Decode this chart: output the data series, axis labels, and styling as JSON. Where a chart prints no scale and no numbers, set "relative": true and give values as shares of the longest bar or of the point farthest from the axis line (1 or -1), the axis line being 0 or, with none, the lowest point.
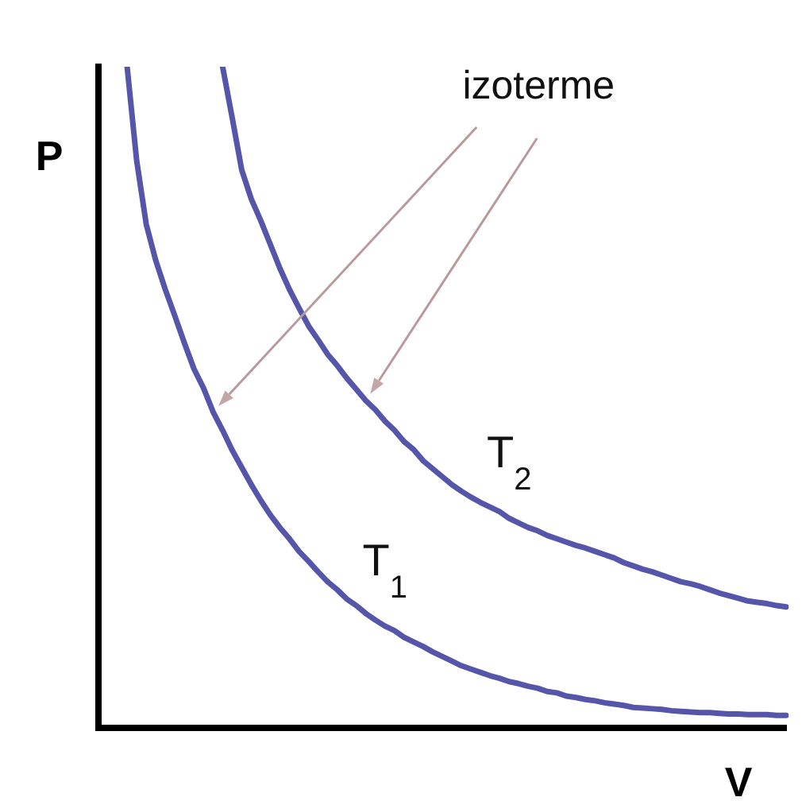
{
  "chart_data": {
    "type": "line",
    "relative": true,
    "xlabel": "V",
    "ylabel": "P",
    "annotations": [
      "izoterme"
    ],
    "categories": [
      null,
      null,
      null,
      null,
      null,
      null,
      null,
      null,
      null,
      null,
      null,
      null,
      null,
      null,
      null,
      null,
      null,
      null,
      null,
      null,
      null,
      null,
      null,
      null,
      null,
      null,
      null,
      null,
      null,
      null,
      null,
      null,
      null,
      null,
      null,
      null,
      null,
      null,
      null,
      null,
      null,
      null,
      null,
      null,
      null,
      null,
      null,
      null,
      null,
      null,
      null,
      null,
      null,
      null,
      null,
      null,
      null,
      null,
      null,
      null,
      null,
      null,
      null,
      null,
      null,
      null,
      null,
      null,
      null,
      null,
      null,
      null,
      null
    ],
    "series": [
      {
        "name": "T$_{1}$",
        "color": "#5555aa",
        "values": [
          null,
          null,
          null,
          1,
          0.858,
          0.762,
          0.707,
          0.663,
          0.623,
          0.582,
          0.543,
          0.514,
          0.478,
          0.45,
          0.42,
          0.394,
          0.368,
          0.344,
          0.322,
          0.303,
          0.286,
          0.267,
          0.252,
          0.236,
          0.221,
          0.209,
          0.195,
          0.185,
          0.173,
          0.163,
          0.154,
          0.147,
          0.137,
          0.13,
          0.123,
          0.115,
          0.108,
          0.101,
          0.094,
          0.089,
          0.084,
          0.079,
          0.075,
          0.07,
          0.067,
          0.063,
          0.06,
          0.055,
          0.053,
          0.048,
          0.046,
          0.043,
          0.041,
          0.038,
          0.036,
          0.034,
          0.031,
          0.03,
          0.029,
          0.028,
          0.026,
          0.025,
          0.024,
          0.023,
          0.023,
          0.022,
          0.021,
          0.021,
          0.02,
          0.02,
          0.02,
          0.019,
          0.019
        ]
      },
      {
        "name": "T$_{2}$",
        "color": "#5555aa",
        "values": [
          null,
          null,
          null,
          null,
          null,
          null,
          null,
          null,
          null,
          null,
          null,
          null,
          null,
          1,
          0.923,
          0.844,
          0.8,
          0.767,
          0.731,
          0.695,
          0.663,
          0.635,
          0.608,
          0.587,
          0.565,
          0.548,
          0.529,
          0.512,
          0.495,
          0.481,
          0.464,
          0.45,
          0.433,
          0.421,
          0.404,
          0.392,
          0.38,
          0.368,
          0.358,
          0.349,
          0.341,
          0.334,
          0.327,
          0.317,
          0.31,
          0.303,
          0.298,
          0.291,
          0.286,
          0.281,
          0.276,
          0.272,
          0.267,
          0.262,
          0.257,
          0.25,
          0.245,
          0.24,
          0.236,
          0.231,
          0.226,
          0.221,
          0.218,
          0.214,
          0.209,
          0.204,
          0.2,
          0.196,
          0.192,
          0.19,
          0.188,
          0.185,
          0.183
        ]
      }
    ]
  }
}
